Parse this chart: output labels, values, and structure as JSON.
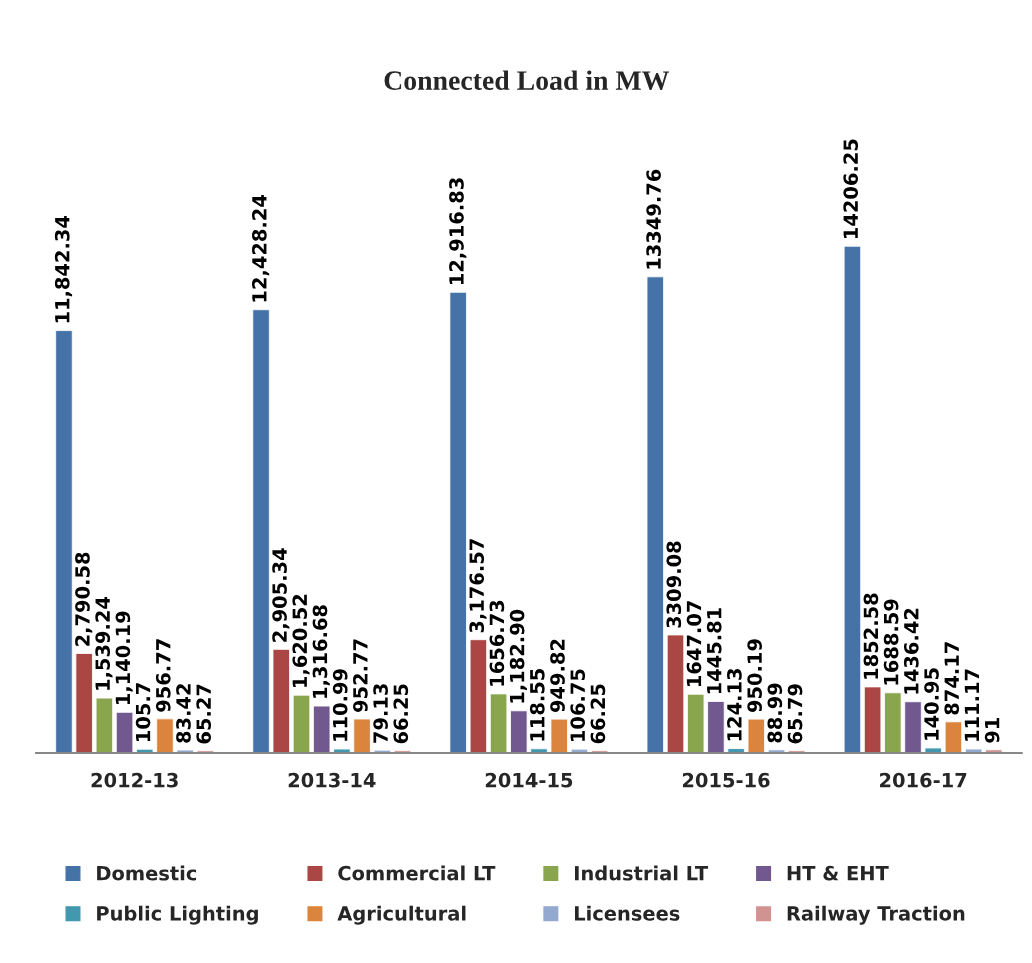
{
  "chart_data": {
    "type": "bar",
    "title": "Connected Load in MW",
    "categories": [
      "2012-13",
      "2013-14",
      "2014-15",
      "2015-16",
      "2016-17"
    ],
    "series": [
      {
        "name": "Domestic",
        "color": "#4572a7",
        "values": [
          11842.34,
          12428.24,
          12916.83,
          13349.76,
          14206.25
        ],
        "value_labels": [
          "11,842.34",
          "12,428.24",
          "12,916.83",
          "13349.76",
          "14206.25"
        ]
      },
      {
        "name": "Commercial LT",
        "color": "#aa4643",
        "values": [
          2790.58,
          2905.34,
          3176.57,
          3309.08,
          1852.58
        ],
        "value_labels": [
          "2,790.58",
          "2,905.34",
          "3,176.57",
          "3309.08",
          "1852.58"
        ]
      },
      {
        "name": "Industrial LT",
        "color": "#89a54e",
        "values": [
          1539.24,
          1620.52,
          1656.73,
          1647.07,
          1688.59
        ],
        "value_labels": [
          "1,539.24",
          "1,620.52",
          "1656.73",
          "1647.07",
          "1688.59"
        ]
      },
      {
        "name": "HT & EHT",
        "color": "#71588f",
        "values": [
          1140.19,
          1316.68,
          1182.9,
          1445.81,
          1436.42
        ],
        "value_labels": [
          "1,140.19",
          "1,316.68",
          "1,182.90",
          "1445.81",
          "1436.42"
        ]
      },
      {
        "name": "Public Lighting",
        "color": "#4198af",
        "values": [
          105.7,
          110.99,
          118.55,
          124.13,
          140.95
        ],
        "value_labels": [
          "105.7",
          "110.99",
          "118.55",
          "124.13",
          "140.95"
        ]
      },
      {
        "name": "Agricultural",
        "color": "#db843d",
        "values": [
          956.77,
          952.77,
          949.82,
          950.19,
          874.17
        ],
        "value_labels": [
          "956.77",
          "952.77",
          "949.82",
          "950.19",
          "874.17"
        ]
      },
      {
        "name": "Licensees",
        "color": "#93a9cf",
        "values": [
          83.42,
          79.13,
          106.75,
          88.99,
          111.17
        ],
        "value_labels": [
          "83.42",
          "79.13",
          "106.75",
          "88.99",
          "111.17"
        ]
      },
      {
        "name": "Railway Traction",
        "color": "#d19392",
        "values": [
          65.27,
          66.25,
          66.25,
          65.79,
          91
        ],
        "value_labels": [
          "65.27",
          "66.25",
          "66.25",
          "65.79",
          "91"
        ]
      }
    ],
    "tick_labels": "x",
    "legend": "bottom",
    "grid": false
  }
}
